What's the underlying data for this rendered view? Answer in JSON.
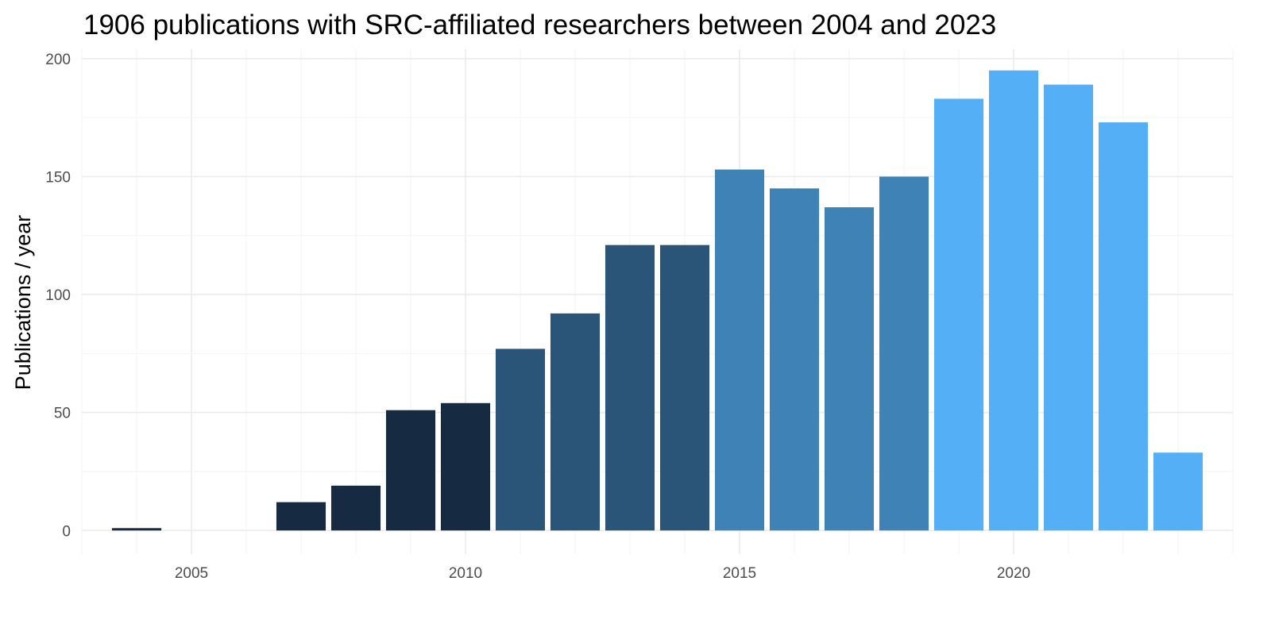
{
  "chart_data": {
    "type": "bar",
    "title": "1906 publications with SRC-affiliated researchers between 2004 and 2023",
    "xlabel": "",
    "ylabel": "Publications / year",
    "x": [
      2004,
      2005,
      2006,
      2007,
      2008,
      2009,
      2010,
      2011,
      2012,
      2013,
      2014,
      2015,
      2016,
      2017,
      2018,
      2019,
      2020,
      2021,
      2022,
      2023
    ],
    "values": [
      1,
      0,
      0,
      12,
      19,
      51,
      54,
      77,
      92,
      121,
      121,
      153,
      145,
      137,
      150,
      183,
      195,
      189,
      173,
      33
    ],
    "colors": [
      "#162b42",
      "#162b42",
      "#162b42",
      "#162b42",
      "#162b42",
      "#162b42",
      "#162b42",
      "#2a5578",
      "#2a5578",
      "#2a5578",
      "#2a5578",
      "#3f82b6",
      "#3f82b6",
      "#3f82b6",
      "#3f82b6",
      "#55aff6",
      "#55aff6",
      "#55aff6",
      "#55aff6",
      "#55aff6"
    ],
    "xlim": [
      2003,
      2024
    ],
    "ylim": [
      -10,
      204
    ],
    "x_ticks": [
      2005,
      2010,
      2015,
      2020
    ],
    "y_ticks": [
      0,
      50,
      100,
      150,
      200
    ],
    "grid": true,
    "legend": "none"
  }
}
